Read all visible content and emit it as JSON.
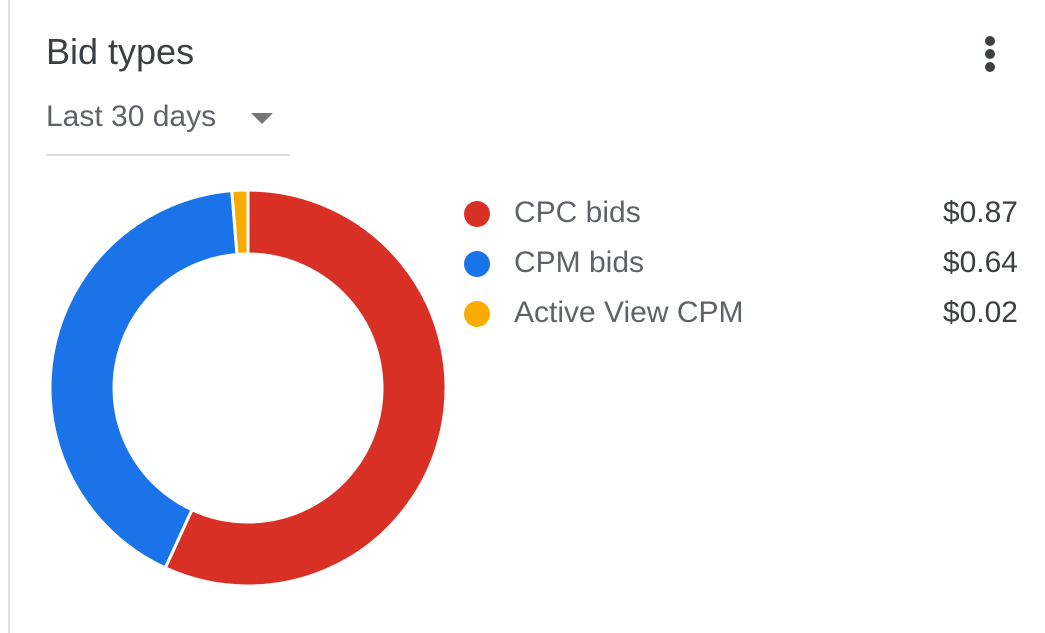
{
  "card": {
    "title": "Bid types",
    "more_icon": "more-vert-icon"
  },
  "date_range": {
    "selected": "Last 30 days",
    "caret_icon": "dropdown-caret-icon"
  },
  "chart_data": {
    "type": "pie",
    "donut": true,
    "title": "",
    "series": [
      {
        "name": "CPC bids",
        "value": 0.87,
        "display": "$0.87",
        "color": "#d93025"
      },
      {
        "name": "CPM bids",
        "value": 0.64,
        "display": "$0.64",
        "color": "#1a73e8"
      },
      {
        "name": "Active View CPM",
        "value": 0.02,
        "display": "$0.02",
        "color": "#f9ab00"
      }
    ],
    "legend": "right"
  }
}
